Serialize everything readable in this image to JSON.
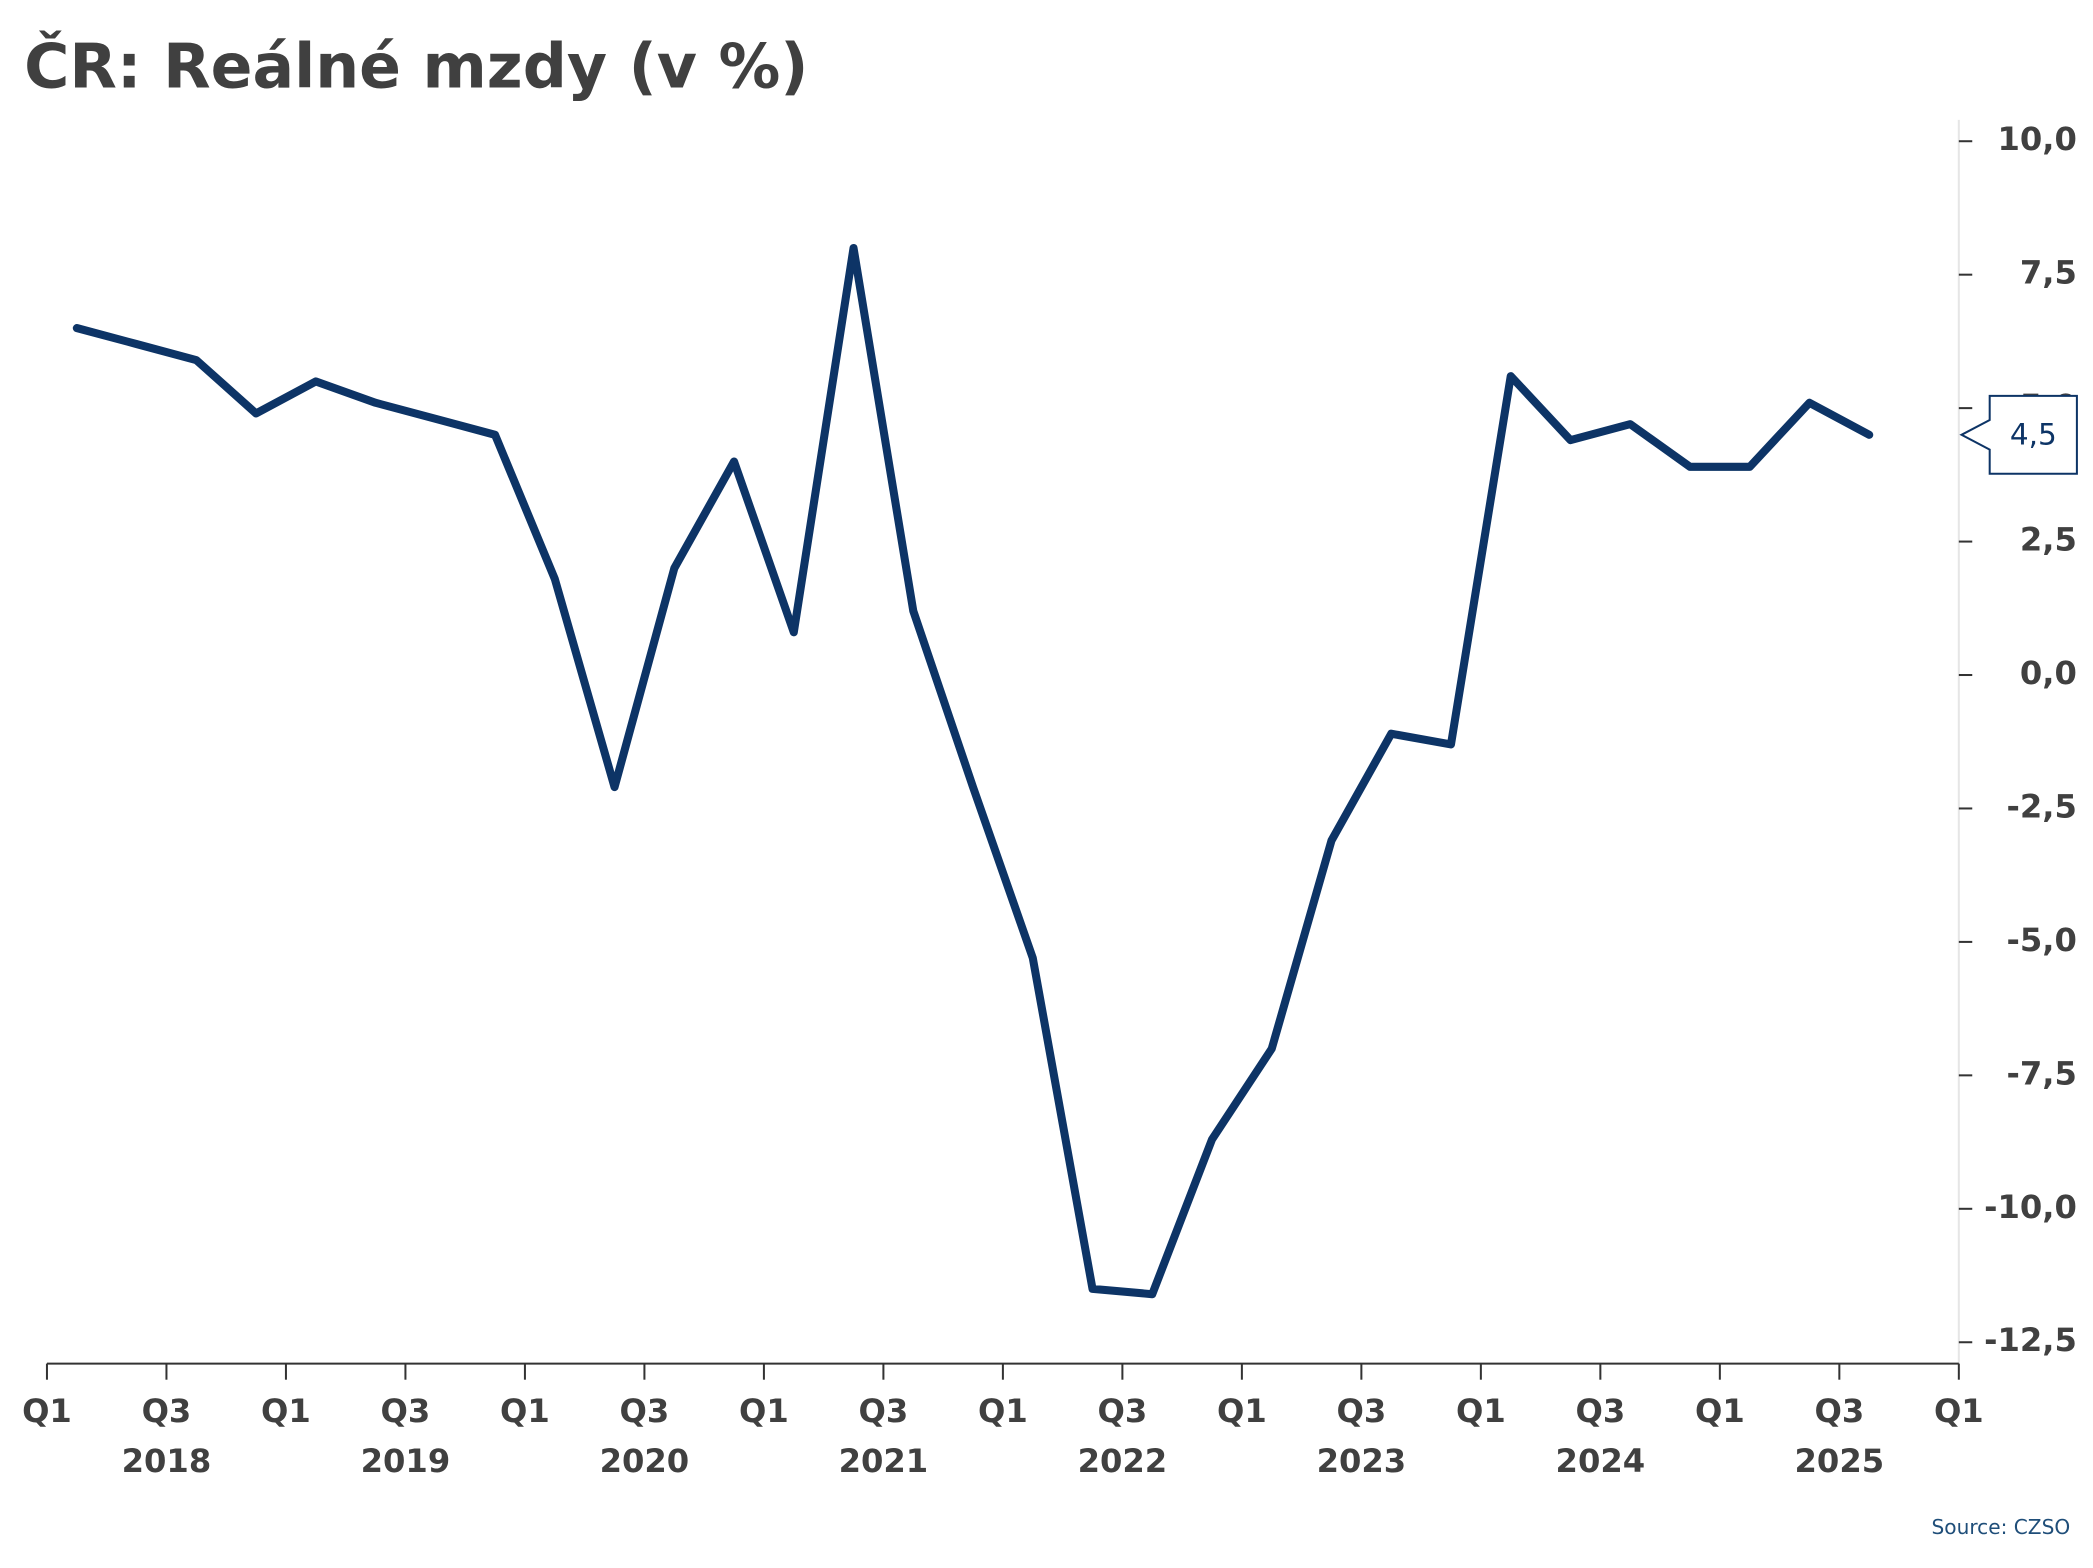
{
  "chart_data": {
    "type": "line",
    "title": "ČR: Reálné mzdy (v %)",
    "source": "Source: CZSO",
    "series": [
      {
        "name": "Reálné mzdy",
        "color": "#0d3466",
        "x": [
          2018.125,
          2018.375,
          2018.625,
          2018.875,
          2019.125,
          2019.375,
          2019.625,
          2019.875,
          2020.125,
          2020.375,
          2020.625,
          2020.875,
          2021.125,
          2021.375,
          2021.625,
          2021.875,
          2022.125,
          2022.375,
          2022.625,
          2022.875,
          2023.125,
          2023.375,
          2023.625,
          2023.875,
          2024.125,
          2024.375,
          2024.625,
          2024.875,
          2025.125,
          2025.375,
          2025.625
        ],
        "values": [
          6.5,
          6.2,
          5.9,
          4.9,
          5.5,
          5.1,
          4.8,
          4.5,
          1.8,
          -2.1,
          2.0,
          4.0,
          0.8,
          8.0,
          1.2,
          -2.1,
          -5.3,
          -11.5,
          -11.6,
          -8.7,
          -7.0,
          -3.1,
          -1.1,
          -1.3,
          5.6,
          4.4,
          4.7,
          3.9,
          3.9,
          5.1,
          4.5
        ]
      }
    ],
    "annotations": [
      {
        "x": 2025.625,
        "y": 4.5,
        "label": "4,5"
      }
    ],
    "xlim": [
      2018,
      2026
    ],
    "xticks": [
      {
        "value": 2018,
        "label": "Q1"
      },
      {
        "value": 2018.5,
        "label": "Q3"
      },
      {
        "value": 2019,
        "label": "Q1"
      },
      {
        "value": 2019.5,
        "label": "Q3"
      },
      {
        "value": 2020,
        "label": "Q1"
      },
      {
        "value": 2020.5,
        "label": "Q3"
      },
      {
        "value": 2021,
        "label": "Q1"
      },
      {
        "value": 2021.5,
        "label": "Q3"
      },
      {
        "value": 2022,
        "label": "Q1"
      },
      {
        "value": 2022.5,
        "label": "Q3"
      },
      {
        "value": 2023,
        "label": "Q1"
      },
      {
        "value": 2023.5,
        "label": "Q3"
      },
      {
        "value": 2024,
        "label": "Q1"
      },
      {
        "value": 2024.5,
        "label": "Q3"
      },
      {
        "value": 2025,
        "label": "Q1"
      },
      {
        "value": 2025.5,
        "label": "Q3"
      },
      {
        "value": 2026,
        "label": "Q1"
      }
    ],
    "x_years": [
      2018,
      2019,
      2020,
      2021,
      2022,
      2023,
      2024,
      2025
    ],
    "ylim": [
      -12.9,
      10.4
    ],
    "yticks": [
      {
        "value": 10,
        "label": "10,0"
      },
      {
        "value": 7.5,
        "label": "7,5"
      },
      {
        "value": 5,
        "label": "5,0"
      },
      {
        "value": 2.5,
        "label": "2,5"
      },
      {
        "value": 0,
        "label": "0,0"
      },
      {
        "value": -2.5,
        "label": "-2,5"
      },
      {
        "value": -5,
        "label": "-5,0"
      },
      {
        "value": -7.5,
        "label": "-7,5"
      },
      {
        "value": -10,
        "label": "-10,0"
      },
      {
        "value": -12.5,
        "label": "-12,5"
      }
    ],
    "y_axis_side": "right",
    "grid": false
  }
}
